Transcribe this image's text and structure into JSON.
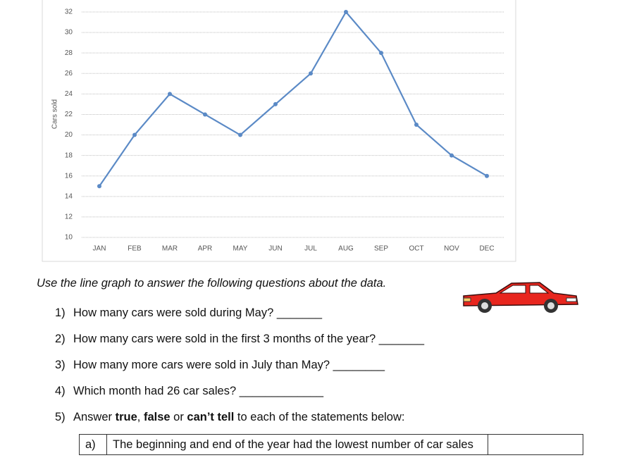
{
  "chart_data": {
    "type": "line",
    "y_label": "Cars sold",
    "categories": [
      "JAN",
      "FEB",
      "MAR",
      "APR",
      "MAY",
      "JUN",
      "JUL",
      "AUG",
      "SEP",
      "OCT",
      "NOV",
      "DEC"
    ],
    "values": [
      15,
      20,
      24,
      22,
      20,
      23,
      26,
      32,
      28,
      21,
      18,
      16
    ],
    "color": "#5b8ac6",
    "ylim": [
      10,
      32
    ],
    "yticks": [
      10,
      12,
      14,
      16,
      18,
      20,
      22,
      24,
      26,
      28,
      30,
      32
    ],
    "grid": true
  },
  "document": {
    "instruction": "Use the line graph to answer the following questions about the data.",
    "questions": [
      {
        "number": "1)",
        "text": "How many cars were sold during May? _______"
      },
      {
        "number": "2)",
        "text": "How many cars were sold in the first 3 months of the year? _______"
      },
      {
        "number": "3)",
        "text": "How many more cars were sold in July than May? ________"
      },
      {
        "number": "4)",
        "text": "Which month had 26 car sales? _____________"
      },
      {
        "number": "5)",
        "parts": [
          {
            "text": "Answer ",
            "bold": false
          },
          {
            "text": "true",
            "bold": true
          },
          {
            "text": ", ",
            "bold": false
          },
          {
            "text": "false",
            "bold": true
          },
          {
            "text": " or ",
            "bold": false
          },
          {
            "text": "can’t tell",
            "bold": true
          },
          {
            "text": " to each of the statements below:",
            "bold": false
          }
        ]
      }
    ],
    "table": {
      "rows": [
        [
          "a)",
          "The beginning and end of the year had the lowest number of car sales"
        ]
      ]
    }
  }
}
